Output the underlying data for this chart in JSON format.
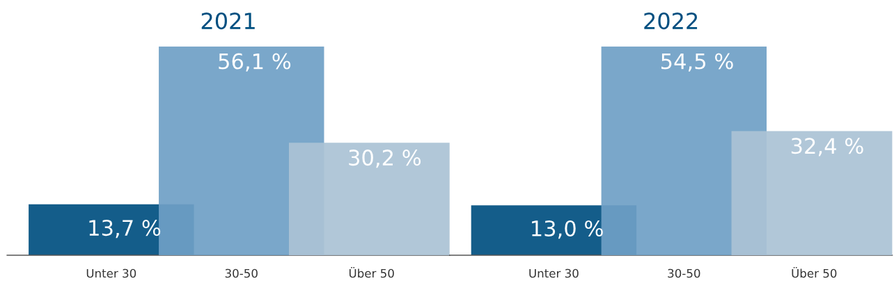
{
  "chart_data": [
    {
      "type": "bar",
      "title": "2021",
      "categories": [
        "Unter 30",
        "30-50",
        "Über 50"
      ],
      "values": [
        13.7,
        56.1,
        30.2
      ],
      "colors": [
        "#004f80",
        "#6f9fc6",
        "#aac2d5"
      ],
      "value_labels": [
        "13,7 %",
        "56,1 %",
        "30,2 %"
      ]
    },
    {
      "type": "bar",
      "title": "2022",
      "categories": [
        "Unter 30",
        "30-50",
        "Über 50"
      ],
      "values": [
        13.0,
        54.5,
        32.4
      ],
      "colors": [
        "#004f80",
        "#6f9fc6",
        "#aac2d5"
      ],
      "value_labels": [
        "13,0 %",
        "54,5 %",
        "32,4 %"
      ]
    }
  ]
}
